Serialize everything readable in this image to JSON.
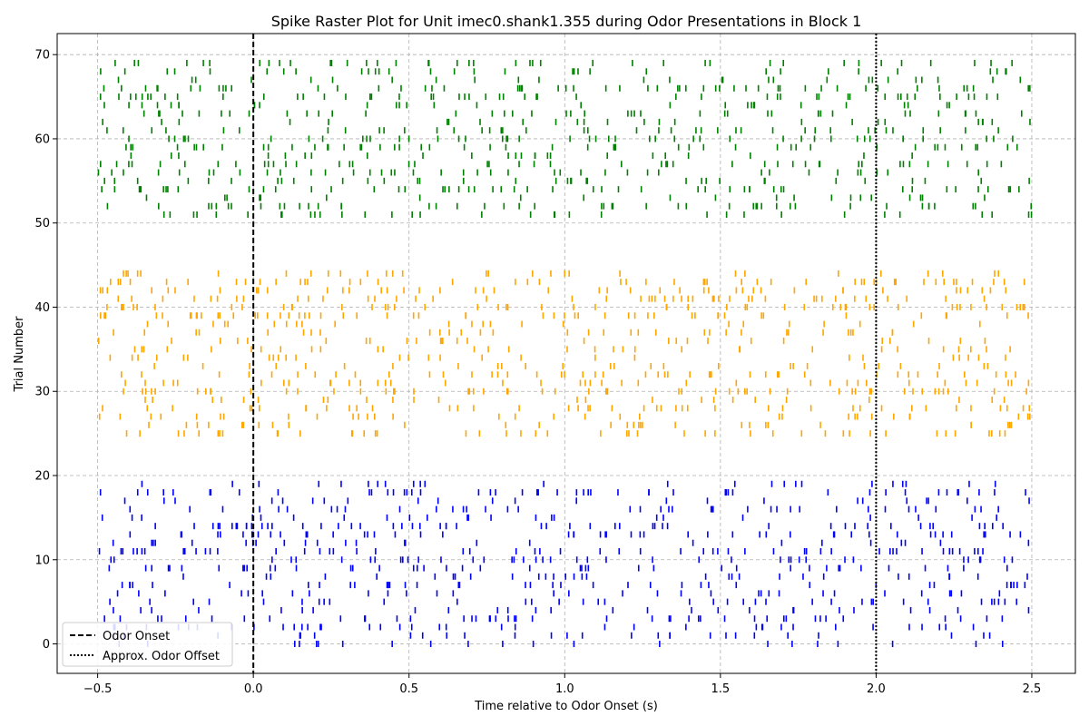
{
  "chart_data": {
    "type": "raster",
    "title": "Spike Raster Plot for Unit imec0.shank1.355 during Odor Presentations in Block 1",
    "xlabel": "Time relative to Odor Onset (s)",
    "ylabel": "Trial Number",
    "xlim": [
      -0.63,
      2.64
    ],
    "ylim": [
      -3.5,
      72.5
    ],
    "xticks": [
      -0.5,
      0.0,
      0.5,
      1.0,
      1.5,
      2.0,
      2.5
    ],
    "xtick_labels": [
      "−0.5",
      "0.0",
      "0.5",
      "1.0",
      "1.5",
      "2.0",
      "2.5"
    ],
    "yticks": [
      0,
      10,
      20,
      30,
      40,
      50,
      60,
      70
    ],
    "ytick_labels": [
      "0",
      "10",
      "20",
      "30",
      "40",
      "50",
      "60",
      "70"
    ],
    "grid": true,
    "legend_position": "lower-left",
    "time_window": [
      -0.5,
      2.5
    ],
    "groups": [
      {
        "trials": [
          0,
          19
        ],
        "color": "#0000ff"
      },
      {
        "trials": [
          25,
          44
        ],
        "color": "#ffa500"
      },
      {
        "trials": [
          51,
          69
        ],
        "color": "#008000"
      }
    ],
    "spikes_per_trial_estimate": 38,
    "reference_lines": [
      {
        "x": 0.0,
        "style": "dashed",
        "label": "Odor Onset"
      },
      {
        "x": 2.0,
        "style": "dotted",
        "label": "Approx. Odor Offset"
      }
    ]
  }
}
